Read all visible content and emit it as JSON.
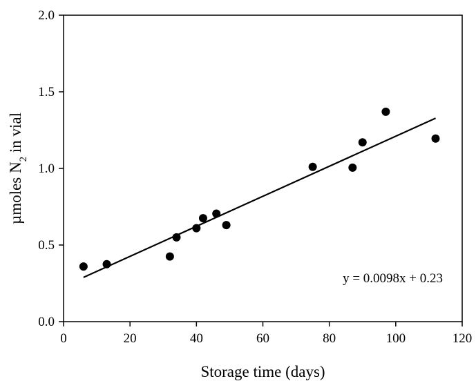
{
  "chart_data": {
    "type": "scatter",
    "xlabel": "Storage time (days)",
    "ylabel_prefix": "µmoles N",
    "ylabel_subscript": "2",
    "ylabel_suffix": " in vial",
    "xlim": [
      0,
      120
    ],
    "ylim": [
      0.0,
      2.0
    ],
    "x_ticks": [
      0,
      20,
      40,
      60,
      80,
      100,
      120
    ],
    "x_tick_labels": [
      "0",
      "20",
      "40",
      "60",
      "80",
      "100",
      "120"
    ],
    "y_ticks": [
      0.0,
      0.5,
      1.0,
      1.5,
      2.0
    ],
    "y_tick_labels": [
      "0.0",
      "0.5",
      "1.0",
      "1.5",
      "2.0"
    ],
    "grid": false,
    "points": [
      {
        "x": 6,
        "y": 0.36
      },
      {
        "x": 13,
        "y": 0.375
      },
      {
        "x": 32,
        "y": 0.425
      },
      {
        "x": 34,
        "y": 0.55
      },
      {
        "x": 40,
        "y": 0.61
      },
      {
        "x": 42,
        "y": 0.675
      },
      {
        "x": 46,
        "y": 0.705
      },
      {
        "x": 49,
        "y": 0.63
      },
      {
        "x": 75,
        "y": 1.01
      },
      {
        "x": 87,
        "y": 1.005
      },
      {
        "x": 90,
        "y": 1.17
      },
      {
        "x": 97,
        "y": 1.37
      },
      {
        "x": 112,
        "y": 1.195
      }
    ],
    "fit_line": {
      "slope": 0.0098,
      "intercept": 0.23,
      "x_range": [
        6,
        112
      ]
    },
    "annotation": "y = 0.0098x + 0.23",
    "colors": {
      "marker": "#000000",
      "line": "#000000"
    }
  }
}
